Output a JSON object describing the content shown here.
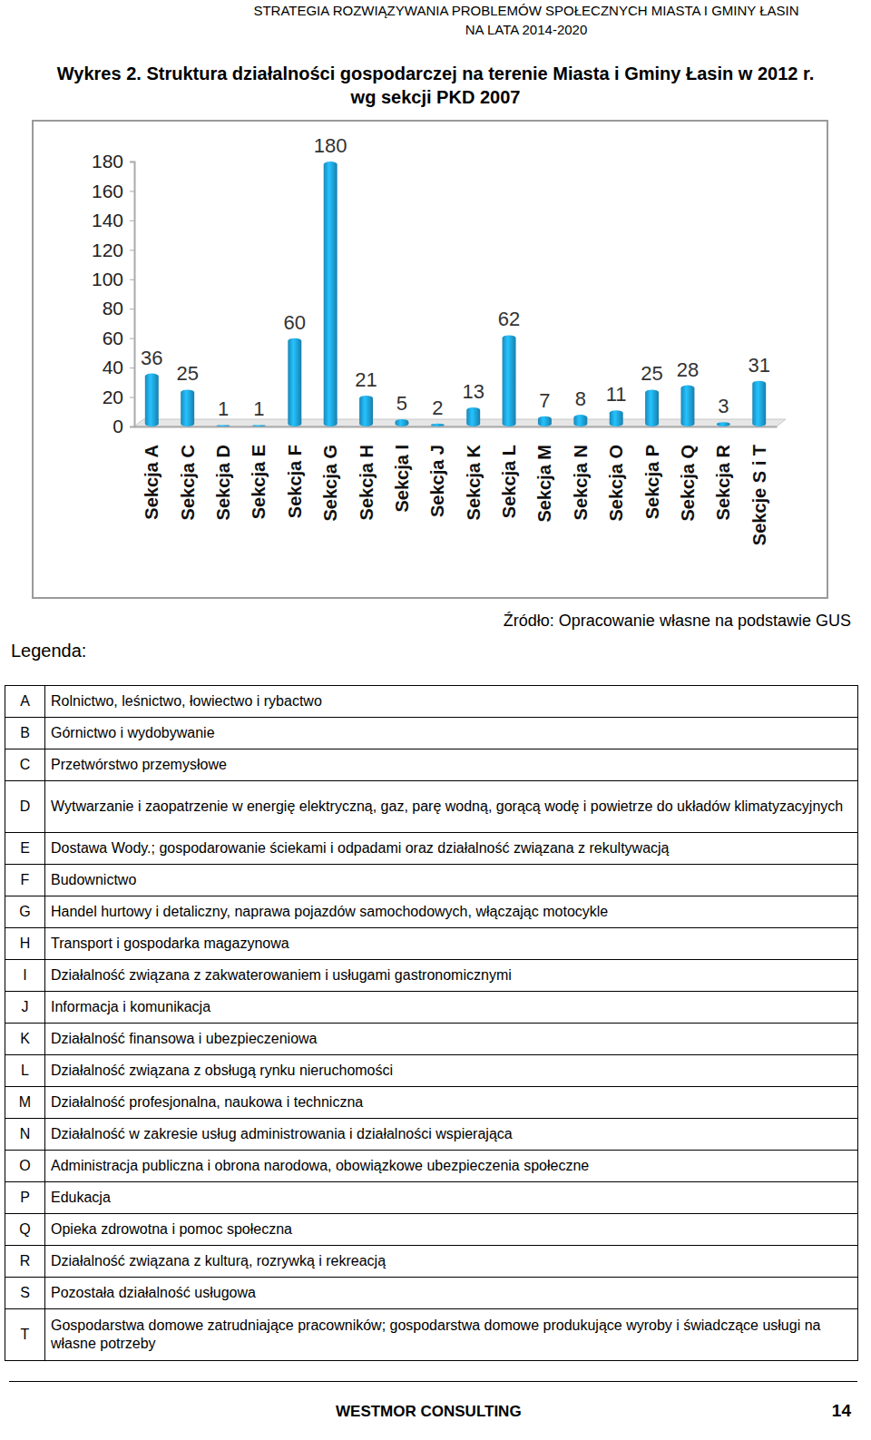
{
  "header": {
    "title": "STRATEGIA ROZWIĄZYWANIA PROBLEMÓW SPOŁECZNYCH MIASTA I GMINY ŁASIN",
    "subtitle": "NA LATA 2014-2020"
  },
  "chart_data": {
    "type": "bar",
    "title": "Wykres 2. Struktura działalności gospodarczej na terenie Miasta i Gminy Łasin w 2012 r.",
    "subtitle": "wg sekcji PKD 2007",
    "categories": [
      "Sekcja A",
      "Sekcja C",
      "Sekcja D",
      "Sekcja E",
      "Sekcja F",
      "Sekcja G",
      "Sekcja H",
      "Sekcja I",
      "Sekcja J",
      "Sekcja K",
      "Sekcja L",
      "Sekcja M",
      "Sekcja N",
      "Sekcja O",
      "Sekcja P",
      "Sekcja Q",
      "Sekcja R",
      "Sekcje S i T"
    ],
    "values": [
      36,
      25,
      1,
      1,
      60,
      180,
      21,
      5,
      2,
      13,
      62,
      7,
      8,
      11,
      25,
      28,
      3,
      31
    ],
    "color": "#1fa3dd",
    "ylim": [
      0,
      180
    ],
    "yticks": [
      0,
      20,
      40,
      60,
      80,
      100,
      120,
      140,
      160,
      180
    ],
    "grid": false,
    "data_labels": true
  },
  "source": "Źródło: Opracowanie własne na podstawie GUS",
  "legend": {
    "title": "Legenda:",
    "rows": [
      [
        "A",
        "Rolnictwo, leśnictwo, łowiectwo i rybactwo"
      ],
      [
        "B",
        "Górnictwo i wydobywanie"
      ],
      [
        "C",
        "Przetwórstwo przemysłowe"
      ],
      [
        "D",
        "Wytwarzanie i zaopatrzenie w energię elektryczną, gaz, parę wodną, gorącą wodę i powietrze do układów klimatyzacyjnych"
      ],
      [
        "E",
        "Dostawa Wody.; gospodarowanie ściekami i odpadami oraz działalność związana z rekultywacją"
      ],
      [
        "F",
        "Budownictwo"
      ],
      [
        "G",
        "Handel hurtowy i detaliczny, naprawa pojazdów samochodowych, włączając motocykle"
      ],
      [
        "H",
        "Transport i gospodarka magazynowa"
      ],
      [
        "I",
        "Działalność związana z zakwaterowaniem i usługami gastronomicznymi"
      ],
      [
        "J",
        "Informacja i komunikacja"
      ],
      [
        "K",
        "Działalność finansowa i ubezpieczeniowa"
      ],
      [
        "L",
        "Działalność związana z obsługą rynku nieruchomości"
      ],
      [
        "M",
        "Działalność profesjonalna, naukowa i techniczna"
      ],
      [
        "N",
        "Działalność w zakresie usług administrowania i działalności wspierająca"
      ],
      [
        "O",
        "Administracja publiczna i obrona narodowa, obowiązkowe ubezpieczenia społeczne"
      ],
      [
        "P",
        "Edukacja"
      ],
      [
        "Q",
        "Opieka zdrowotna i pomoc społeczna"
      ],
      [
        "R",
        "Działalność związana z kulturą, rozrywką i rekreacją"
      ],
      [
        "S",
        "Pozostała działalność usługowa"
      ],
      [
        "T",
        "Gospodarstwa domowe zatrudniające pracowników; gospodarstwa domowe produkujące wyroby i świadczące usługi na własne potrzeby"
      ]
    ]
  },
  "footer": {
    "company": "WESTMOR CONSULTING",
    "page": "14"
  }
}
